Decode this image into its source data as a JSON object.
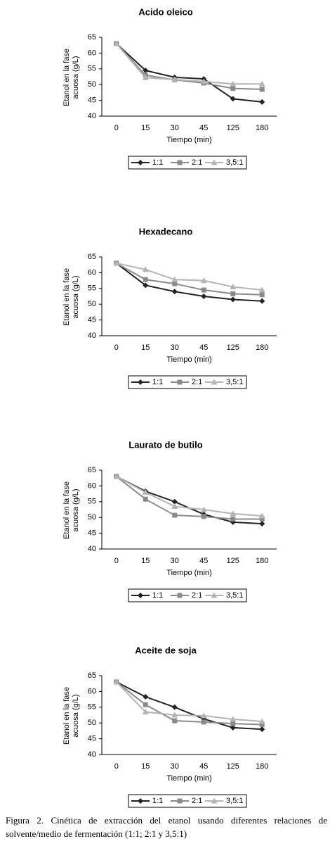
{
  "chart_data": [
    {
      "type": "line",
      "title": "Acido oleico",
      "ylabel": [
        "Etanol en la fase",
        "acuosa (g/L)"
      ],
      "xlabel": "Tiempo (min)",
      "categories": [
        "0",
        "15",
        "30",
        "45",
        "125",
        "180"
      ],
      "ylim": [
        40,
        65
      ],
      "yticks": [
        40,
        45,
        50,
        55,
        60,
        65
      ],
      "series": [
        {
          "name": "1:1",
          "color": "#222222",
          "marker": "diamond",
          "values": [
            63,
            54.5,
            52.3,
            51.8,
            45.5,
            44.5
          ]
        },
        {
          "name": "2:1",
          "color": "#8a8a8a",
          "marker": "square",
          "values": [
            63,
            53,
            51.5,
            50.5,
            48.8,
            48.5
          ]
        },
        {
          "name": "3,5:1",
          "color": "#b4b4b4",
          "marker": "triangle",
          "values": [
            63,
            52.2,
            51.6,
            51,
            50.2,
            50.2
          ]
        }
      ]
    },
    {
      "type": "line",
      "title": "Hexadecano",
      "ylabel": [
        "Etanol en la fase",
        "acuosa (g/L)"
      ],
      "xlabel": "Tiempo (min)",
      "categories": [
        "0",
        "15",
        "30",
        "45",
        "125",
        "180"
      ],
      "ylim": [
        40,
        65
      ],
      "yticks": [
        40,
        45,
        50,
        55,
        60,
        65
      ],
      "series": [
        {
          "name": "1:1",
          "color": "#222222",
          "marker": "diamond",
          "values": [
            63,
            56,
            54,
            52.5,
            51.5,
            51
          ]
        },
        {
          "name": "2:1",
          "color": "#8a8a8a",
          "marker": "square",
          "values": [
            63,
            57.8,
            56.5,
            54.5,
            53.3,
            53
          ]
        },
        {
          "name": "3,5:1",
          "color": "#b4b4b4",
          "marker": "triangle",
          "values": [
            63,
            61,
            57.8,
            57.5,
            55.5,
            54.5
          ]
        }
      ]
    },
    {
      "type": "line",
      "title": "Laurato de butilo",
      "ylabel": [
        "Etanol en la fase",
        "acuosa (g/L)"
      ],
      "xlabel": "Tiempo (min)",
      "categories": [
        "0",
        "15",
        "30",
        "45",
        "125",
        "180"
      ],
      "ylim": [
        40,
        65
      ],
      "yticks": [
        40,
        45,
        50,
        55,
        60,
        65
      ],
      "series": [
        {
          "name": "1:1",
          "color": "#222222",
          "marker": "diamond",
          "values": [
            63,
            58.3,
            55,
            51,
            48.5,
            48
          ]
        },
        {
          "name": "2:1",
          "color": "#8a8a8a",
          "marker": "square",
          "values": [
            63,
            55.8,
            50.7,
            50.3,
            49.5,
            49.5
          ]
        },
        {
          "name": "3,5:1",
          "color": "#b4b4b4",
          "marker": "triangle",
          "values": [
            63,
            58,
            53.5,
            52.5,
            51.2,
            50.5
          ]
        }
      ]
    },
    {
      "type": "line",
      "title": "Aceite de soja",
      "ylabel": [
        "Etanol en la fase",
        "acuosa (g/L)"
      ],
      "xlabel": "Tiempo (min)",
      "categories": [
        "0",
        "15",
        "30",
        "45",
        "125",
        "180"
      ],
      "ylim": [
        40,
        65
      ],
      "yticks": [
        40,
        45,
        50,
        55,
        60,
        65
      ],
      "series": [
        {
          "name": "1:1",
          "color": "#222222",
          "marker": "diamond",
          "values": [
            63,
            58.3,
            55,
            51.3,
            48.5,
            48
          ]
        },
        {
          "name": "2:1",
          "color": "#8a8a8a",
          "marker": "square",
          "values": [
            63,
            55.8,
            50.7,
            50.3,
            49.8,
            49.5
          ]
        },
        {
          "name": "3,5:1",
          "color": "#b4b4b4",
          "marker": "triangle",
          "values": [
            63,
            53.5,
            52.5,
            52.3,
            51.2,
            50.5
          ]
        }
      ]
    }
  ],
  "caption": "Figura 2. Cinética de extracción del etanol usando diferentes relaciones de solvente/medio de fermentación (1:1; 2:1 y 3,5:1)"
}
